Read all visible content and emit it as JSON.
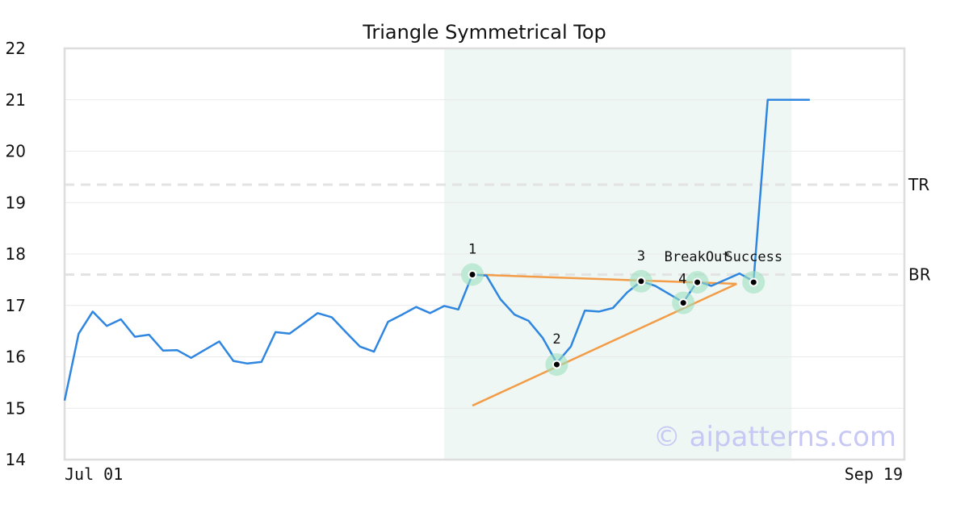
{
  "chart_data": {
    "type": "line",
    "title": "Triangle Symmetrical Top",
    "x_tick_labels": [
      "Jul 01",
      "Sep 19"
    ],
    "ylim": [
      14,
      22
    ],
    "y_ticks": [
      14,
      15,
      16,
      17,
      18,
      19,
      20,
      21,
      22
    ],
    "grid": true,
    "series": [
      {
        "color": "#2f86e0",
        "x": [
          0,
          1,
          2,
          3,
          4,
          5,
          6,
          7,
          8,
          9,
          10,
          11,
          12,
          13,
          14,
          15,
          16,
          17,
          18,
          19,
          20,
          21,
          22,
          23,
          24,
          25,
          26,
          27,
          28,
          29,
          30,
          31,
          32,
          33,
          34,
          35,
          36,
          37,
          38,
          39,
          40,
          41,
          42,
          43,
          44,
          45,
          46,
          47,
          48,
          49,
          50,
          51,
          52,
          53
        ],
        "values": [
          15.15,
          16.45,
          16.88,
          16.6,
          16.73,
          16.39,
          16.43,
          16.12,
          16.13,
          15.98,
          16.14,
          16.3,
          15.92,
          15.87,
          15.9,
          16.48,
          16.45,
          16.65,
          16.85,
          16.77,
          16.48,
          16.2,
          16.1,
          16.68,
          16.82,
          16.97,
          16.85,
          16.99,
          16.92,
          17.6,
          17.58,
          17.12,
          16.82,
          16.7,
          16.37,
          15.88,
          16.2,
          16.9,
          16.88,
          16.95,
          17.25,
          17.47,
          17.38,
          17.22,
          17.06,
          17.47,
          17.38,
          17.5,
          17.62,
          17.47,
          21.0,
          21.0,
          21.0,
          21.0
        ]
      }
    ],
    "highlight_region": {
      "x_start": 27,
      "x_end": 51.7,
      "color": "#eef7f3"
    },
    "horizontal_lines": [
      {
        "label": "TR",
        "y": 19.35,
        "color": "#e3e3e3"
      },
      {
        "label": "BR",
        "y": 17.6,
        "color": "#e3e3e3"
      }
    ],
    "trend_lines": [
      {
        "x": [
          29,
          47.8
        ],
        "y": [
          17.6,
          17.42
        ],
        "color": "#f39c48"
      },
      {
        "x": [
          29,
          47.8
        ],
        "y": [
          15.05,
          17.42
        ],
        "color": "#f39c48"
      }
    ],
    "pattern_points": [
      {
        "label": "1",
        "x": 29,
        "y": 17.6,
        "label_pos": "above"
      },
      {
        "label": "2",
        "x": 35,
        "y": 15.85,
        "label_pos": "above"
      },
      {
        "label": "3",
        "x": 41,
        "y": 17.47,
        "label_pos": "above"
      },
      {
        "label": "4",
        "x": 44,
        "y": 17.05,
        "label_pos": "left"
      },
      {
        "label": "BreakOut",
        "x": 45,
        "y": 17.45,
        "label_pos": "above"
      },
      {
        "label": "Success",
        "x": 49,
        "y": 17.45,
        "label_pos": "above"
      }
    ],
    "watermark": "© aipatterns.com"
  }
}
